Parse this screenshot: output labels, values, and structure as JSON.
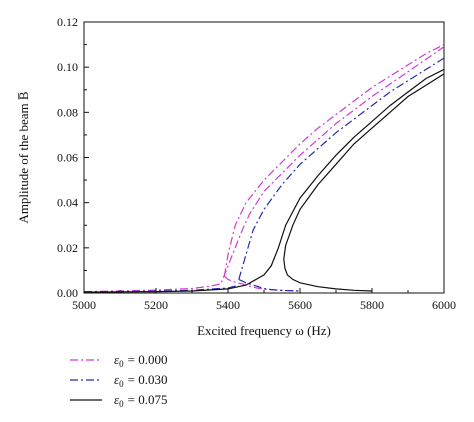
{
  "chart_data": {
    "type": "line",
    "title": "",
    "xlabel": "Excited frequency ω (Hz)",
    "ylabel": "Amplitude of the beam B̅",
    "xlim": [
      5000,
      6000
    ],
    "ylim": [
      0.0,
      0.12
    ],
    "xticks": [
      "5000",
      "5200",
      "5400",
      "5600",
      "5800",
      "6000"
    ],
    "yticks": [
      "0.00",
      "0.02",
      "0.04",
      "0.06",
      "0.08",
      "0.10",
      "0.12"
    ],
    "grid": false,
    "legend_position": "bottom-left, below plot",
    "series": [
      {
        "name": "ε₀ = 0.000",
        "legend_symbol": "ε",
        "legend_subscript": "0",
        "legend_value": "= 0.000",
        "color": "#d23ad6",
        "dash": "8,3,2,3",
        "upper_branch": {
          "x": [
            5390,
            5400,
            5420,
            5450,
            5500,
            5550,
            5600,
            5650,
            5700,
            5750,
            5800,
            5850,
            5900,
            5950,
            6000
          ],
          "y": [
            0.0075,
            0.017,
            0.03,
            0.04,
            0.05,
            0.058,
            0.066,
            0.073,
            0.079,
            0.085,
            0.091,
            0.096,
            0.101,
            0.106,
            0.11
          ]
        },
        "middle_branch": {
          "x": [
            5390,
            5400,
            5420,
            5440,
            5460,
            5480,
            5500,
            5550,
            5600
          ],
          "y": [
            0.0075,
            0.006,
            0.0048,
            0.004,
            0.003,
            0.0022,
            0.0017,
            0.0012,
            0.0009
          ]
        },
        "lower_branch": {
          "x": [
            5000,
            5100,
            5200,
            5300,
            5350,
            5380,
            5430,
            5440,
            5460,
            5500,
            5600,
            5700,
            5800,
            5900,
            6000
          ],
          "y": [
            0.0006,
            0.0009,
            0.0013,
            0.002,
            0.003,
            0.004,
            0.024,
            0.028,
            0.035,
            0.045,
            0.061,
            0.075,
            0.087,
            0.098,
            0.109
          ]
        }
      },
      {
        "name": "ε₀ = 0.030",
        "legend_symbol": "ε",
        "legend_subscript": "0",
        "legend_value": "= 0.030",
        "color": "#2a2aa8",
        "dash": "8,3,2,3",
        "upper_branch": {
          "x": [
            5430,
            5450,
            5470,
            5500,
            5550,
            5600,
            5650,
            5700,
            5750,
            5800,
            5850,
            5900,
            5950,
            6000
          ],
          "y": [
            0.006,
            0.017,
            0.028,
            0.037,
            0.048,
            0.057,
            0.064,
            0.071,
            0.077,
            0.083,
            0.089,
            0.094,
            0.099,
            0.104
          ]
        },
        "middle_branch": {
          "x": [
            5430,
            5450,
            5480,
            5500,
            5520,
            5550,
            5600
          ],
          "y": [
            0.006,
            0.0045,
            0.003,
            0.002,
            0.0015,
            0.0011,
            0.0009
          ]
        },
        "lower_branch": {
          "x": [
            5000,
            5200,
            5300,
            5400,
            5430
          ],
          "y": [
            0.0005,
            0.0008,
            0.0012,
            0.0022,
            0.0035
          ]
        }
      },
      {
        "name": "ε₀ = 0.075",
        "legend_symbol": "ε",
        "legend_subscript": "0",
        "legend_value": "= 0.075",
        "color": "#111111",
        "dash": "",
        "upper_branch": {
          "x": [
            5000,
            5200,
            5300,
            5400,
            5450,
            5500,
            5520,
            5540,
            5560,
            5600,
            5650,
            5700,
            5750,
            5800,
            5850,
            5900,
            5950,
            6000
          ],
          "y": [
            0.0004,
            0.0006,
            0.0009,
            0.0018,
            0.0035,
            0.008,
            0.012,
            0.02,
            0.03,
            0.042,
            0.052,
            0.061,
            0.069,
            0.076,
            0.083,
            0.089,
            0.095,
            0.099
          ]
        },
        "middle_branch": {
          "x": [
            5555,
            5560,
            5580,
            5600,
            5650,
            5700,
            5750,
            5800,
            5850,
            5900,
            5950,
            6000
          ],
          "y": [
            0.015,
            0.021,
            0.03,
            0.037,
            0.048,
            0.057,
            0.066,
            0.073,
            0.08,
            0.087,
            0.092,
            0.097
          ]
        },
        "lower_branch": {
          "x": [
            5555,
            5558,
            5565,
            5580,
            5600,
            5650,
            5700,
            5750,
            5800
          ],
          "y": [
            0.015,
            0.011,
            0.008,
            0.006,
            0.0045,
            0.0028,
            0.0018,
            0.0012,
            0.0009
          ]
        }
      }
    ]
  }
}
